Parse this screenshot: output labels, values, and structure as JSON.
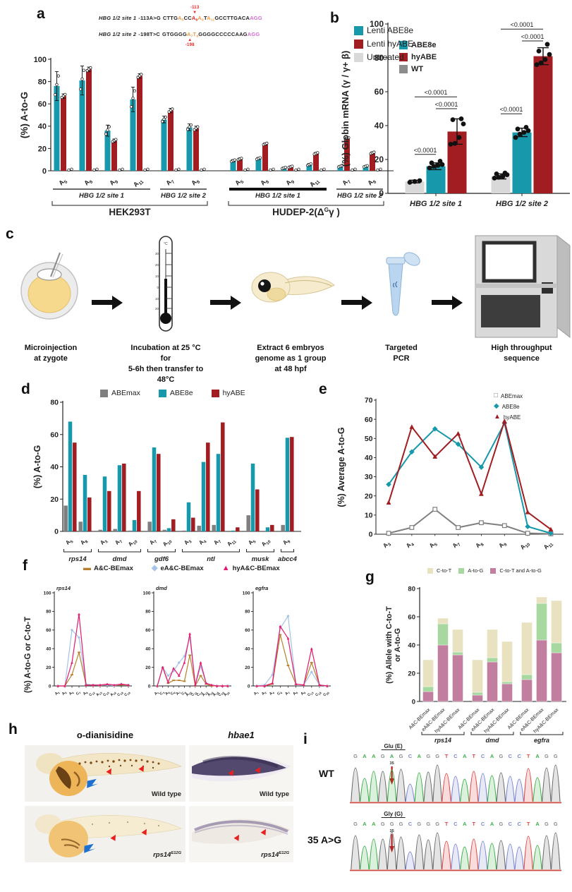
{
  "colors": {
    "teal": "#1798ab",
    "red": "#a11d21",
    "gray": "#8c8c8c",
    "lightgray": "#d9d9d9",
    "darkgray": "#7f7f7f",
    "brown": "#b5812e",
    "lightblue": "#a3c3e8",
    "magenta": "#e5186d",
    "tan": "#e9e2c0",
    "green": "#a6d8a0",
    "mauve": "#c17e9f",
    "seq_orange": "#f09c42",
    "seq_red": "#e8201f",
    "seq_pink": "#d66fd6",
    "chrom_A": "#3fae49",
    "chrom_C": "#7b86cf",
    "chrom_G": "#6a6a6a",
    "chrom_T": "#e04545"
  },
  "panel_a": {
    "label": "a",
    "legend": [
      {
        "label": "ABE8e",
        "color": "teal",
        "marker": "rect"
      },
      {
        "label": "hyABE",
        "color": "red",
        "marker": "rect"
      },
      {
        "label": "WT",
        "color": "gray",
        "marker": "rect"
      }
    ],
    "annotation": {
      "rows": [
        {
          "gene": "HBG 1/2 site 1",
          "change": "-113A>G",
          "arrow_label": "-113",
          "arrow_pos": "above",
          "parts": [
            {
              "t": "CTTG",
              "c": "k"
            },
            {
              "t": "A",
              "sub": "5",
              "c": "o"
            },
            {
              "t": "CC",
              "c": "k"
            },
            {
              "t": "A",
              "sub": "8",
              "c": "r",
              "mark": true
            },
            {
              "t": "A",
              "sub": "9",
              "c": "o"
            },
            {
              "t": "T",
              "c": "k"
            },
            {
              "t": "A",
              "sub": "11",
              "c": "o"
            },
            {
              "t": "GCCTTGACA",
              "c": "k"
            },
            {
              "t": "AGG",
              "c": "m"
            }
          ]
        },
        {
          "gene": "HBG 1/2 site 2",
          "change": "-198T>C",
          "arrow_label": "-198",
          "arrow_pos": "below",
          "parts": [
            {
              "t": "GTGGGG",
              "c": "k"
            },
            {
              "t": "A",
              "sub": "7",
              "c": "o",
              "mark": true
            },
            {
              "t": "T",
              "sub": "8",
              "c": "o"
            },
            {
              "t": "GGGGCCCCCAAG",
              "c": "k"
            },
            {
              "t": "AGG",
              "c": "m"
            }
          ]
        }
      ]
    }
  },
  "panel_b": {
    "label": "b",
    "legend": [
      {
        "label": "Lenti ABE8e",
        "color": "teal",
        "marker": "rect"
      },
      {
        "label": "Lenti hyABE",
        "color": "red",
        "marker": "rect"
      },
      {
        "label": "Untreated",
        "color": "lightgray",
        "marker": "rect"
      }
    ]
  },
  "panel_c": {
    "label": "c",
    "steps": [
      {
        "icon": "microinjection-egg-icon",
        "caption": "Microinjection\nat zygote"
      },
      {
        "icon": "thermometer-icon",
        "caption": "Incubation at 25 °C for\n5-6h then transfer to 48°C"
      },
      {
        "icon": "zebrafish-embryo-icon",
        "caption": "Extract 6 embryos\ngenome as 1 group\nat 48 hpf"
      },
      {
        "icon": "pcr-tube-icon",
        "caption": "Targeted PCR"
      },
      {
        "icon": "sequencer-icon",
        "caption": "High throughput\nsequence"
      }
    ]
  },
  "panel_d": {
    "label": "d",
    "legend": [
      {
        "label": "ABEmax",
        "color": "darkgray",
        "marker": "rect"
      },
      {
        "label": "ABE8e",
        "color": "teal",
        "marker": "rect"
      },
      {
        "label": "hyABE",
        "color": "red",
        "marker": "rect"
      }
    ]
  },
  "panel_e": {
    "label": "e",
    "legend": [
      {
        "label": "ABEmax",
        "color": "darkgray",
        "marker": "square_open"
      },
      {
        "label": "ABE8e",
        "color": "teal",
        "marker": "diamond"
      },
      {
        "label": "hyABE",
        "color": "red",
        "marker": "triangle"
      }
    ]
  },
  "panel_f": {
    "label": "f",
    "y_label": "(%) A-to-G or C-to-T",
    "legend": [
      {
        "label": "A&C-BEmax",
        "color": "brown",
        "marker": "dash"
      },
      {
        "label": "eA&C-BEmax",
        "color": "lightblue",
        "marker": "diamond"
      },
      {
        "label": "hyA&C-BEmax",
        "color": "magenta",
        "marker": "triangle"
      }
    ]
  },
  "panel_g": {
    "label": "g",
    "legend": [
      {
        "label": "C-to-T",
        "color": "tan",
        "marker": "rect"
      },
      {
        "label": "A-to-G",
        "color": "green",
        "marker": "rect"
      },
      {
        "label": "C-to-T and A-to-G",
        "color": "mauve",
        "marker": "rect"
      }
    ]
  },
  "panel_h": {
    "label": "h",
    "col_titles": [
      "o-dianisidine",
      "hbae1"
    ],
    "image_labels": [
      {
        "text": "Wild type",
        "italic": false
      },
      {
        "text": "Wild type",
        "italic": false
      },
      {
        "text": "rps14^{E12G}",
        "italic": true
      },
      {
        "text": "rps14^{E12G}",
        "italic": true
      }
    ]
  },
  "panel_i": {
    "label": "i",
    "rows": [
      {
        "name": "WT",
        "codon": "Glu (E)",
        "position": "35",
        "sequence": "GAAGAGCAGGTCATCAGCCTAGG",
        "arrow_index": 4
      },
      {
        "name": "35 A>G",
        "codon": "Gly (G)",
        "position": "35",
        "sequence": "GAAGGGCGGGTCATCAGCCTAGG",
        "arrow_index": 4
      }
    ]
  },
  "chart_data": [
    {
      "id": "a",
      "type": "bar",
      "ylabel": "(%) A-to-G",
      "ylim": [
        0,
        100
      ],
      "ytick": 20,
      "categories": [
        "A5",
        "A8",
        "A9",
        "A11",
        "A7",
        "A8",
        "A5",
        "A8",
        "A9",
        "A11",
        "A7",
        "A8"
      ],
      "series": [
        {
          "name": "ABE8e",
          "color": "teal",
          "values": [
            76,
            81,
            36,
            64,
            46,
            39,
            9,
            11,
            2.5,
            5.5,
            4,
            4
          ],
          "errs": [
            13,
            13,
            5,
            11,
            3,
            3,
            1,
            1,
            0.8,
            1,
            0.8,
            0.8
          ]
        },
        {
          "name": "hyABE",
          "color": "red",
          "values": [
            67,
            91,
            27,
            85,
            54,
            38,
            10.5,
            24,
            3.5,
            15.5,
            29,
            16
          ],
          "errs": [
            2,
            2,
            1.5,
            2,
            2,
            2,
            1,
            1,
            0.8,
            1,
            1,
            1
          ]
        },
        {
          "name": "WT",
          "color": "gray",
          "values": [
            0.5,
            0.5,
            0.5,
            0.5,
            0.5,
            0.5,
            0.5,
            0.5,
            0.5,
            0.5,
            0.5,
            0.5
          ],
          "errs": [
            0.3,
            0.3,
            0.3,
            0.3,
            0.3,
            0.3,
            0.3,
            0.3,
            0.3,
            0.3,
            0.3,
            0.3
          ]
        }
      ],
      "site_spans": [
        {
          "label": "HBG 1/2 site 1",
          "from": 0,
          "to": 3,
          "thick": false
        },
        {
          "label": "HBG 1/2 site 2",
          "from": 4,
          "to": 5,
          "thick": false
        },
        {
          "label": "HBG 1/2 site 1",
          "from": 6,
          "to": 9,
          "thick": true
        },
        {
          "label": "HBG 1/2 site 2",
          "from": 10,
          "to": 11,
          "thick": false
        }
      ],
      "cell_spans": [
        {
          "label": "HEK293T",
          "from": 0,
          "to": 5
        },
        {
          "label": "HUDEP-2(Δ^{G}γ )",
          "from": 6,
          "to": 11
        }
      ]
    },
    {
      "id": "b",
      "type": "bar",
      "ylabel": "(%) Globin mRNA (γ / γ+ β)",
      "ylim": [
        0,
        100
      ],
      "ytick": 20,
      "series_names": [
        "Untreated",
        "Lenti ABE8e",
        "Lenti hyABE"
      ],
      "series_colors": [
        "lightgray",
        "teal",
        "red"
      ],
      "groups": [
        {
          "label": "HBG 1/2 site 1",
          "values": [
            7,
            16,
            36.5
          ],
          "errs": [
            0.8,
            2,
            7.5
          ],
          "dots": [
            [
              6.5,
              7,
              7.5
            ],
            [
              15,
              16,
              16.5,
              17,
              18,
              19
            ],
            [
              29,
              29.5,
              33,
              41,
              43.5,
              44
            ]
          ]
        },
        {
          "label": "HBG 1/2 site 2",
          "values": [
            10,
            36,
            81
          ],
          "errs": [
            1.5,
            2.5,
            5
          ],
          "dots": [
            [
              9,
              9.5,
              10,
              11,
              11.5,
              12
            ],
            [
              33,
              35,
              36,
              37,
              38,
              39
            ],
            [
              76,
              77,
              79,
              82,
              84,
              88
            ]
          ]
        }
      ],
      "significance": [
        {
          "group": 0,
          "a": 0,
          "b": 1,
          "y": 23,
          "label": "<0.0001"
        },
        {
          "group": 0,
          "a": 1,
          "b": 2,
          "y": 50,
          "label": "<0.0001"
        },
        {
          "group": 0,
          "a": 0,
          "b": 2,
          "y": 57,
          "label": "<0.0001"
        },
        {
          "group": 1,
          "a": 0,
          "b": 1,
          "y": 47,
          "label": "<0.0001"
        },
        {
          "group": 1,
          "a": 1,
          "b": 2,
          "y": 90,
          "label": "<0.0001"
        },
        {
          "group": 1,
          "a": 0,
          "b": 2,
          "y": 97,
          "label": "<0.0001"
        }
      ]
    },
    {
      "id": "d",
      "type": "bar",
      "ylabel": "(%) A-to-G",
      "ylim": [
        0,
        80
      ],
      "ytick": 20,
      "categories": [
        "A5",
        "A8",
        "A3",
        "A7",
        "A10",
        "A7",
        "A10",
        "A3",
        "A4",
        "A7",
        "A11",
        "A5",
        "A10",
        "A9"
      ],
      "series": [
        {
          "name": "ABEmax",
          "color": "darkgray",
          "values": [
            16,
            6,
            1,
            1.5,
            0.5,
            6,
            1,
            0.5,
            3.5,
            4,
            0,
            10,
            0,
            4
          ]
        },
        {
          "name": "ABE8e",
          "color": "teal",
          "values": [
            68,
            35,
            34,
            41,
            7,
            52,
            2,
            18,
            43,
            48,
            0.5,
            42,
            2.5,
            58
          ]
        },
        {
          "name": "hyABE",
          "color": "red",
          "values": [
            55,
            21,
            25,
            42,
            25,
            48,
            7.5,
            8.5,
            55,
            67.5,
            2.5,
            26,
            4,
            58.5
          ]
        }
      ],
      "gene_spans": [
        {
          "label": "rps14",
          "from": 0,
          "to": 1
        },
        {
          "label": "dmd",
          "from": 2,
          "to": 4
        },
        {
          "label": "gdf6",
          "from": 5,
          "to": 6
        },
        {
          "label": "ntl",
          "from": 7,
          "to": 10
        },
        {
          "label": "musk",
          "from": 11,
          "to": 12
        },
        {
          "label": "abcc4",
          "from": 13,
          "to": 13
        }
      ]
    },
    {
      "id": "e",
      "type": "line",
      "ylabel": "(%) Average A-to-G",
      "ylim": [
        0,
        70
      ],
      "ytick": 10,
      "categories": [
        "A3",
        "A4",
        "A5",
        "A7",
        "A8",
        "A9",
        "A10",
        "A11"
      ],
      "series": [
        {
          "name": "ABEmax",
          "color": "darkgray",
          "marker": "square_open",
          "values": [
            0.5,
            3.5,
            13,
            3.5,
            6,
            4.5,
            0.5,
            0.2
          ]
        },
        {
          "name": "ABE8e",
          "color": "teal",
          "marker": "diamond",
          "values": [
            26,
            43,
            55,
            47,
            35,
            58,
            4,
            0.5
          ]
        },
        {
          "name": "hyABE",
          "color": "red",
          "marker": "triangle",
          "values": [
            16.5,
            56,
            40.5,
            52.5,
            21,
            59,
            11.5,
            2.5
          ]
        }
      ]
    },
    {
      "id": "f_rps14",
      "type": "line",
      "title": "rps14",
      "ylim": [
        0,
        100
      ],
      "ytick": 20,
      "categories": [
        "A2",
        "A5",
        "A6",
        "C7",
        "A9",
        "C12",
        "A13",
        "C15",
        "A16",
        "C18",
        "C19"
      ],
      "series": [
        {
          "name": "A&C-BEmax",
          "color": "brown",
          "marker": "dash",
          "values": [
            0,
            0,
            12,
            36,
            1,
            1,
            0.5,
            1,
            0.5,
            1,
            1
          ]
        },
        {
          "name": "eA&C-BEmax",
          "color": "lightblue",
          "marker": "diamond",
          "values": [
            0,
            0,
            60,
            52,
            2,
            1,
            1,
            1,
            0.5,
            2,
            1
          ]
        },
        {
          "name": "hyA&C-BEmax",
          "color": "magenta",
          "marker": "triangle",
          "values": [
            0,
            0,
            25,
            77,
            1,
            1,
            1,
            2,
            1,
            2,
            1
          ]
        }
      ]
    },
    {
      "id": "f_dmd",
      "type": "line",
      "title": "dmd",
      "ylim": [
        0,
        100
      ],
      "ytick": 20,
      "categories": [
        "A1",
        "C3",
        "A5",
        "C6",
        "A7",
        "C9",
        "A10",
        "C11",
        "C14",
        "A15",
        "A16",
        "A18",
        "C19",
        "A20"
      ],
      "series": [
        {
          "name": "A&C-BEmax",
          "color": "brown",
          "marker": "dash",
          "values": [
            0,
            20,
            3,
            6,
            6,
            5,
            33,
            0,
            11,
            2,
            0,
            0,
            0,
            0
          ]
        },
        {
          "name": "eA&C-BEmax",
          "color": "lightblue",
          "marker": "diamond",
          "values": [
            0,
            20,
            11,
            16,
            25,
            32,
            52,
            1,
            21,
            3,
            1,
            0,
            0,
            0
          ]
        },
        {
          "name": "hyA&C-BEmax",
          "color": "magenta",
          "marker": "triangle",
          "values": [
            0,
            20,
            4,
            19,
            11,
            25,
            56,
            1,
            25,
            3,
            1,
            0,
            0,
            0
          ]
        }
      ]
    },
    {
      "id": "f_egfra",
      "type": "line",
      "title": "egfra",
      "ylim": [
        0,
        100
      ],
      "ytick": 20,
      "categories": [
        "A1",
        "A2",
        "A4",
        "C6",
        "A7",
        "A8",
        "A9",
        "C13",
        "C18",
        "C20"
      ],
      "series": [
        {
          "name": "A&C-BEmax",
          "color": "brown",
          "marker": "dash",
          "values": [
            0,
            0,
            2,
            55,
            22,
            2,
            1,
            25,
            1,
            0
          ]
        },
        {
          "name": "eA&C-BEmax",
          "color": "lightblue",
          "marker": "diamond",
          "values": [
            0,
            1,
            12,
            62,
            75,
            2,
            1,
            15,
            1,
            0
          ]
        },
        {
          "name": "hyA&C-BEmax",
          "color": "magenta",
          "marker": "triangle",
          "values": [
            0,
            0,
            3,
            64,
            51,
            2,
            1,
            40,
            1,
            0
          ]
        }
      ]
    },
    {
      "id": "g",
      "type": "stacked_bar",
      "ylabel": "(%) Allele with C-to-T\nor A-to-G",
      "ylim": [
        0,
        80
      ],
      "ytick": 20,
      "segments": [
        {
          "name": "C-to-T",
          "color": "tan"
        },
        {
          "name": "A-to-G",
          "color": "green"
        },
        {
          "name": "C-to-T and A-to-G",
          "color": "mauve"
        }
      ],
      "bars": [
        {
          "category": "A&C-BEmax",
          "both": 7,
          "atog": 3.5,
          "ctot": 19
        },
        {
          "category": "eA&C-BEmax",
          "both": 40,
          "atog": 15,
          "ctot": 4
        },
        {
          "category": "hyA&C-BEmax",
          "both": 33,
          "atog": 2,
          "ctot": 16
        },
        {
          "category": "A&C-BEmax",
          "both": 4.5,
          "atog": 2,
          "ctot": 23
        },
        {
          "category": "eA&C-BEmax",
          "both": 28,
          "atog": 3,
          "ctot": 20
        },
        {
          "category": "hyA&C-BEmax",
          "both": 12.5,
          "atog": 1.5,
          "ctot": 28.5
        },
        {
          "category": "A&C-BEmax",
          "both": 15.5,
          "atog": 3.5,
          "ctot": 37
        },
        {
          "category": "eA&C-BEmax",
          "both": 43.5,
          "atog": 26,
          "ctot": 4.5
        },
        {
          "category": "hyA&C-BEmax",
          "both": 34.5,
          "atog": 7,
          "ctot": 30
        }
      ],
      "gene_spans": [
        {
          "label": "rps14",
          "from": 0,
          "to": 2
        },
        {
          "label": "dmd",
          "from": 3,
          "to": 5
        },
        {
          "label": "egfra",
          "from": 6,
          "to": 8
        }
      ]
    }
  ]
}
